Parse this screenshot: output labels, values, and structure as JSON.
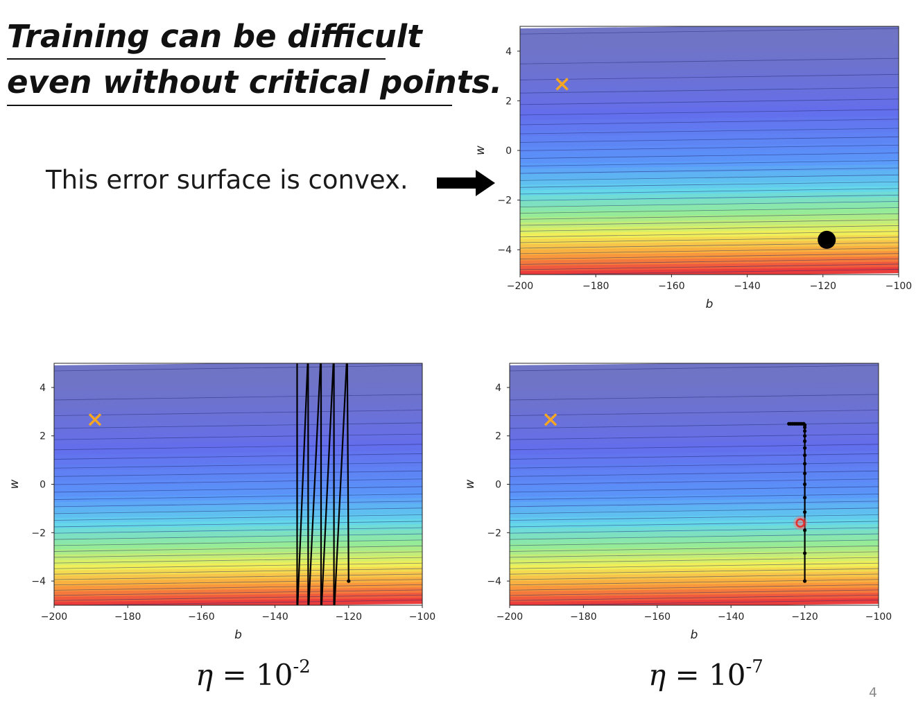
{
  "slide": {
    "title_line1": "Training can be difficult",
    "title_line2": "even without critical points.",
    "convex_note": "This error surface is convex.",
    "eta_left": {
      "symbol": "η",
      "base": " = 10",
      "exponent": "-2"
    },
    "eta_right": {
      "symbol": "η",
      "base": " = 10",
      "exponent": "-7"
    },
    "page_number": "4"
  },
  "icons": {
    "arrow": "right-arrow-icon",
    "marker": "x-marker-icon"
  },
  "colors": {
    "target_marker": "#f5a623",
    "path": "#000000",
    "start_marker": "#e53030"
  },
  "chart_data": [
    {
      "type": "heatmap",
      "name": "error-surface",
      "xlabel": "b",
      "ylabel": "w",
      "xlim": [
        -200,
        -100
      ],
      "ylim": [
        -5,
        5
      ],
      "xticks": [
        -200,
        -180,
        -160,
        -140,
        -120,
        -100
      ],
      "yticks": [
        -4,
        -2,
        0,
        2,
        4
      ],
      "xtick_labels": [
        "−200",
        "−180",
        "−160",
        "−140",
        "−120",
        "−100"
      ],
      "ytick_labels": [
        "−4",
        "−2",
        "0",
        "2",
        "4"
      ],
      "colormap": "jet",
      "optimum": {
        "b": -188.9,
        "w": 2.67,
        "marker": "x"
      },
      "start_point": {
        "b": -119,
        "w": -3.6,
        "marker": "large-dot"
      },
      "path": []
    },
    {
      "type": "heatmap",
      "name": "gd-eta-1e-2",
      "xlabel": "b",
      "ylabel": "w",
      "xlim": [
        -200,
        -100
      ],
      "ylim": [
        -5,
        5
      ],
      "xticks": [
        -200,
        -180,
        -160,
        -140,
        -120,
        -100
      ],
      "yticks": [
        -4,
        -2,
        0,
        2,
        4
      ],
      "xtick_labels": [
        "−200",
        "−180",
        "−160",
        "−140",
        "−120",
        "−100"
      ],
      "ytick_labels": [
        "−4",
        "−2",
        "0",
        "2",
        "4"
      ],
      "colormap": "jet",
      "optimum": {
        "b": -188.9,
        "w": 2.67,
        "marker": "x"
      },
      "oscillation_b": [
        -134,
        -131,
        -127.5,
        -124,
        -120.4
      ],
      "path": [
        {
          "b": -120,
          "w": -4
        },
        {
          "b": -120.4,
          "w": 5.5
        },
        {
          "b": -124,
          "w": -5.5
        },
        {
          "b": -124,
          "w": 5.5
        },
        {
          "b": -127.5,
          "w": -5.5
        },
        {
          "b": -127.5,
          "w": 5.5
        },
        {
          "b": -131,
          "w": -5.5
        },
        {
          "b": -131,
          "w": 5.5
        },
        {
          "b": -134,
          "w": -5.5
        },
        {
          "b": -134,
          "w": 5.5
        }
      ]
    },
    {
      "type": "heatmap",
      "name": "gd-eta-1e-7",
      "xlabel": "b",
      "ylabel": "w",
      "xlim": [
        -200,
        -100
      ],
      "ylim": [
        -5,
        5
      ],
      "xticks": [
        -200,
        -180,
        -160,
        -140,
        -120,
        -100
      ],
      "yticks": [
        -4,
        -2,
        0,
        2,
        4
      ],
      "xtick_labels": [
        "−200",
        "−180",
        "−160",
        "−140",
        "−120",
        "−100"
      ],
      "ytick_labels": [
        "−4",
        "−2",
        "0",
        "2",
        "4"
      ],
      "colormap": "jet",
      "optimum": {
        "b": -188.9,
        "w": 2.67,
        "marker": "x"
      },
      "highlight": {
        "b": -121.2,
        "w": -1.6,
        "marker": "red-circle"
      },
      "path": [
        {
          "b": -120,
          "w": -4.0
        },
        {
          "b": -120,
          "w": -2.85
        },
        {
          "b": -120,
          "w": -1.9
        },
        {
          "b": -120,
          "w": -1.15
        },
        {
          "b": -120,
          "w": -0.55
        },
        {
          "b": -120,
          "w": 0.0
        },
        {
          "b": -120,
          "w": 0.45
        },
        {
          "b": -120,
          "w": 0.85
        },
        {
          "b": -120,
          "w": 1.2
        },
        {
          "b": -120,
          "w": 1.5
        },
        {
          "b": -120,
          "w": 1.78
        },
        {
          "b": -120,
          "w": 2.0
        },
        {
          "b": -120,
          "w": 2.2
        },
        {
          "b": -120,
          "w": 2.35
        },
        {
          "b": -120,
          "w": 2.45
        },
        {
          "b": -120.3,
          "w": 2.5
        },
        {
          "b": -120.8,
          "w": 2.5
        },
        {
          "b": -121.3,
          "w": 2.5
        },
        {
          "b": -121.8,
          "w": 2.5
        },
        {
          "b": -122.3,
          "w": 2.5
        },
        {
          "b": -122.8,
          "w": 2.5
        },
        {
          "b": -123.3,
          "w": 2.5
        },
        {
          "b": -123.8,
          "w": 2.5
        },
        {
          "b": -124.3,
          "w": 2.5
        }
      ]
    }
  ]
}
